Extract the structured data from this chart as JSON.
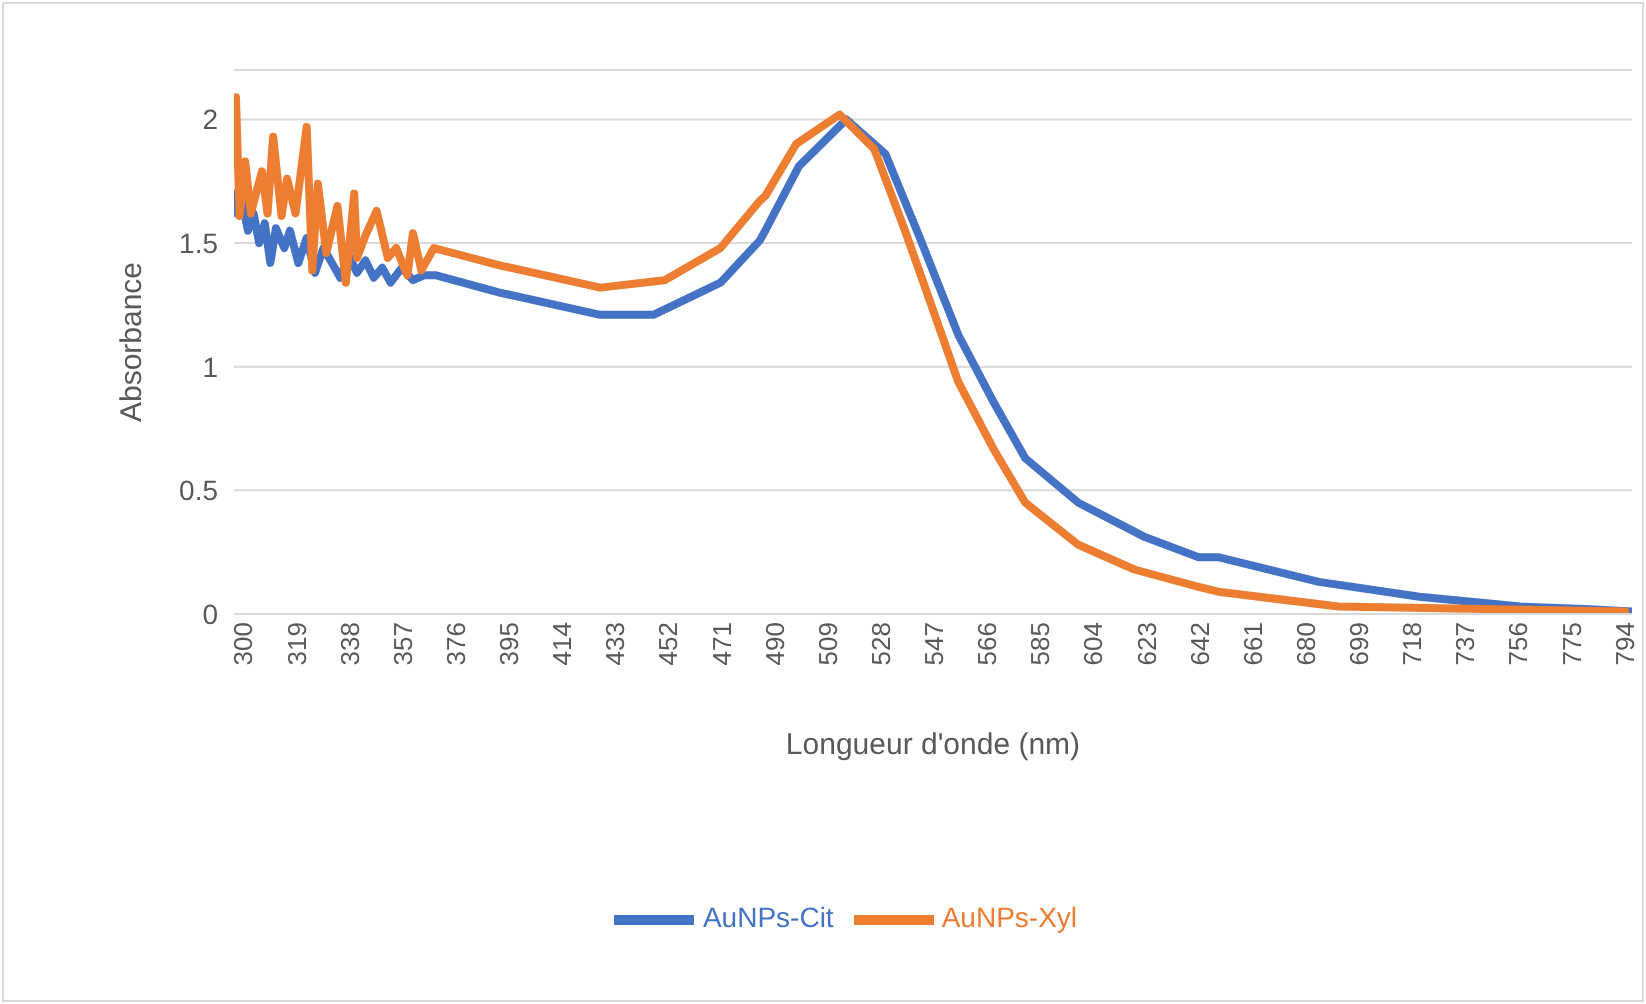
{
  "chart_data": {
    "type": "line",
    "xlabel": "Longueur d'onde (nm)",
    "ylabel": "Absorbance",
    "xlim": [
      300,
      800
    ],
    "xticks": [
      300,
      319,
      338,
      357,
      376,
      395,
      414,
      433,
      452,
      471,
      490,
      509,
      528,
      547,
      566,
      585,
      604,
      623,
      642,
      661,
      680,
      699,
      718,
      737,
      756,
      775,
      794
    ],
    "ylim": [
      0,
      2.2
    ],
    "yticks": [
      0,
      0.5,
      1,
      1.5,
      2
    ],
    "grid": "y",
    "legend": "bottom",
    "marker": "none",
    "line_style": "solid",
    "series": [
      {
        "name": "AuNPs-Cit",
        "color": "#4472c4",
        "x": [
          300,
          301,
          303,
          305,
          307,
          309,
          311,
          313,
          315,
          318,
          320,
          323,
          326,
          329,
          332,
          335,
          338,
          341,
          344,
          347,
          350,
          353,
          356,
          360,
          364,
          368,
          372,
          395,
          431,
          450,
          474,
          488,
          490,
          502,
          519,
          533,
          545,
          559,
          572,
          583,
          602,
          626,
          645,
          652,
          688,
          724,
          760,
          783,
          800
        ],
        "values": [
          1.7,
          1.62,
          1.66,
          1.55,
          1.62,
          1.5,
          1.58,
          1.42,
          1.56,
          1.48,
          1.55,
          1.42,
          1.52,
          1.38,
          1.48,
          1.42,
          1.36,
          1.45,
          1.38,
          1.43,
          1.36,
          1.4,
          1.34,
          1.4,
          1.35,
          1.37,
          1.37,
          1.3,
          1.21,
          1.21,
          1.34,
          1.51,
          1.55,
          1.81,
          2.0,
          1.86,
          1.53,
          1.13,
          0.85,
          0.63,
          0.45,
          0.31,
          0.23,
          0.23,
          0.13,
          0.07,
          0.03,
          0.02,
          0.01
        ]
      },
      {
        "name": "AuNPs-Xyl",
        "color": "#ed7d31",
        "x": [
          300.7,
          302,
          304,
          306,
          310,
          312,
          314,
          317,
          319,
          322,
          326,
          328,
          330,
          333,
          337,
          340,
          343,
          344,
          347,
          351,
          355,
          358,
          362,
          364,
          367,
          371.5,
          395,
          431,
          454,
          474,
          488,
          490,
          501,
          516.6,
          529,
          540,
          550,
          559,
          572,
          583,
          602,
          622,
          645,
          652,
          695,
          797.5
        ],
        "values": [
          2.09,
          1.61,
          1.83,
          1.62,
          1.79,
          1.62,
          1.93,
          1.61,
          1.76,
          1.62,
          1.97,
          1.39,
          1.74,
          1.46,
          1.65,
          1.34,
          1.7,
          1.44,
          1.53,
          1.63,
          1.44,
          1.48,
          1.37,
          1.54,
          1.39,
          1.48,
          1.41,
          1.32,
          1.35,
          1.48,
          1.67,
          1.69,
          1.9,
          2.02,
          1.88,
          1.55,
          1.23,
          0.94,
          0.66,
          0.45,
          0.28,
          0.18,
          0.11,
          0.09,
          0.03,
          0.01
        ]
      }
    ]
  }
}
